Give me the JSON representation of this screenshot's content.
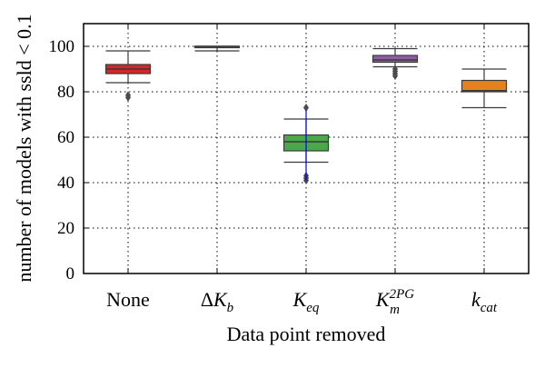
{
  "chart_data": {
    "type": "box",
    "title": "",
    "xlabel": "Data point removed",
    "ylabel": "number of models with ssld < 0.1",
    "ylim": [
      0,
      110
    ],
    "yticks": [
      "0",
      "20",
      "40",
      "60",
      "80",
      "100"
    ],
    "grid": true,
    "grid_style": "dotted",
    "legend": "none",
    "categories": [
      {
        "base": "None",
        "sub": "",
        "sup": "",
        "italic": false,
        "prefix": ""
      },
      {
        "base": "K",
        "sub": "b",
        "sup": "",
        "italic": true,
        "prefix": "Δ"
      },
      {
        "base": "K",
        "sub": "eq",
        "sup": "",
        "italic": true,
        "prefix": ""
      },
      {
        "base": "K",
        "sub": "m",
        "sup": "2PG",
        "italic": true,
        "prefix": ""
      },
      {
        "base": "k",
        "sub": "cat",
        "sup": "",
        "italic": true,
        "prefix": ""
      }
    ],
    "boxes": [
      {
        "whislo": 84,
        "q1": 88,
        "med": 90,
        "q3": 92,
        "whishi": 98,
        "fliers": [
          77.5,
          78.5
        ],
        "color": "#d62728"
      },
      {
        "whislo": 98,
        "q1": 100,
        "med": 100,
        "q3": 100,
        "whishi": 100,
        "fliers": [],
        "color": "#9467bd"
      },
      {
        "whislo": 49,
        "q1": 54,
        "med": 58,
        "q3": 61,
        "whishi": 68,
        "fliers": [
          73,
          43,
          42,
          41
        ],
        "color": "#4aa84a"
      },
      {
        "whislo": 91,
        "q1": 93,
        "med": 94,
        "q3": 96,
        "whishi": 99,
        "fliers": [
          90,
          89,
          88,
          87
        ],
        "color": "#8e5da8"
      },
      {
        "whislo": 73,
        "q1": 80,
        "med": 80.5,
        "q3": 85,
        "whishi": 90,
        "fliers": [],
        "color": "#e6821e"
      }
    ],
    "highlight_line_color": "#0000ff"
  }
}
